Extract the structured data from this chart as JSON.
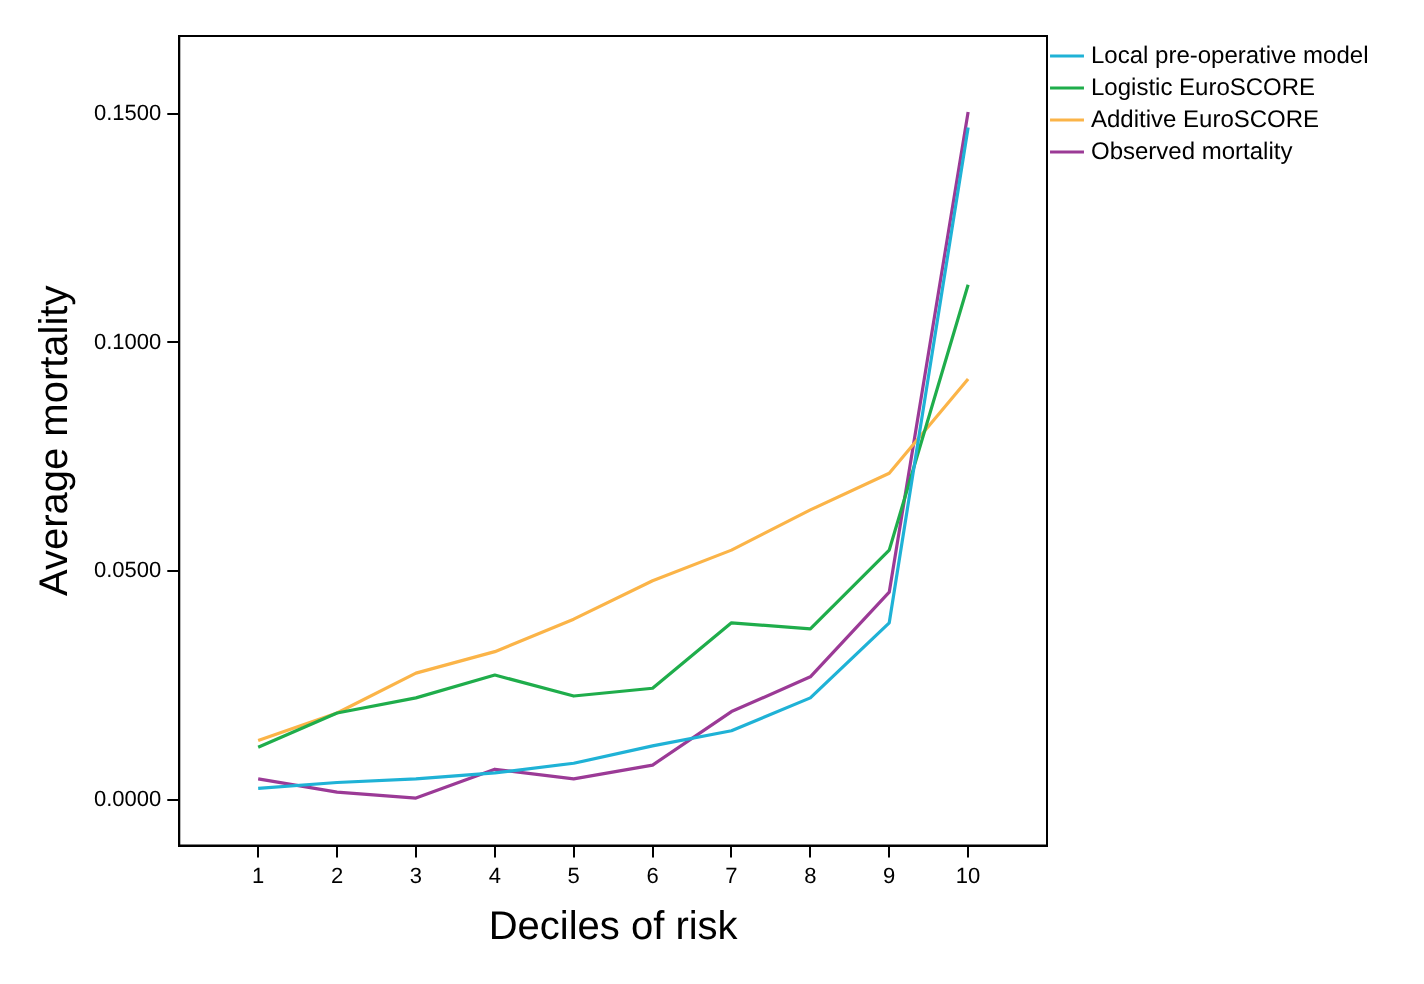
{
  "chart_data": {
    "type": "line",
    "xlabel": "Deciles of risk",
    "ylabel": "Average mortality",
    "x": [
      1,
      2,
      3,
      4,
      5,
      6,
      7,
      8,
      9,
      10
    ],
    "xlim": [
      0,
      11
    ],
    "xticks": [
      1,
      2,
      3,
      4,
      5,
      6,
      7,
      8,
      9,
      10
    ],
    "ylim": [
      -0.01,
      0.167
    ],
    "yticks": [
      {
        "value": 0,
        "label": "0.0000"
      },
      {
        "value": 0.05,
        "label": "0.0500"
      },
      {
        "value": 0.1,
        "label": "0.1000"
      },
      {
        "value": 0.15,
        "label": "0.1500"
      }
    ],
    "series": [
      {
        "name": "Local pre-operative model",
        "color": "#1fb2d6",
        "values": [
          0.0025,
          0.0038,
          0.0046,
          0.0059,
          0.008,
          0.0118,
          0.0151,
          0.0223,
          0.0387,
          0.147
        ]
      },
      {
        "name": "Logistic EuroSCORE",
        "color": "#1fad4b",
        "values": [
          0.0115,
          0.019,
          0.0223,
          0.0273,
          0.0227,
          0.0244,
          0.0387,
          0.0374,
          0.0546,
          0.1126
        ]
      },
      {
        "name": "Additive EuroSCORE",
        "color": "#fbb448",
        "values": [
          0.013,
          0.019,
          0.0277,
          0.0324,
          0.0395,
          0.0479,
          0.0546,
          0.0634,
          0.0714,
          0.092
        ]
      },
      {
        "name": "Observed mortality",
        "color": "#9b3a96",
        "values": [
          0.0046,
          0.0017,
          0.0004,
          0.0067,
          0.0046,
          0.0076,
          0.0193,
          0.0269,
          0.0454,
          0.1504
        ]
      }
    ],
    "grid": false,
    "legend": "top right",
    "marker": "none",
    "line_style": "solid"
  }
}
